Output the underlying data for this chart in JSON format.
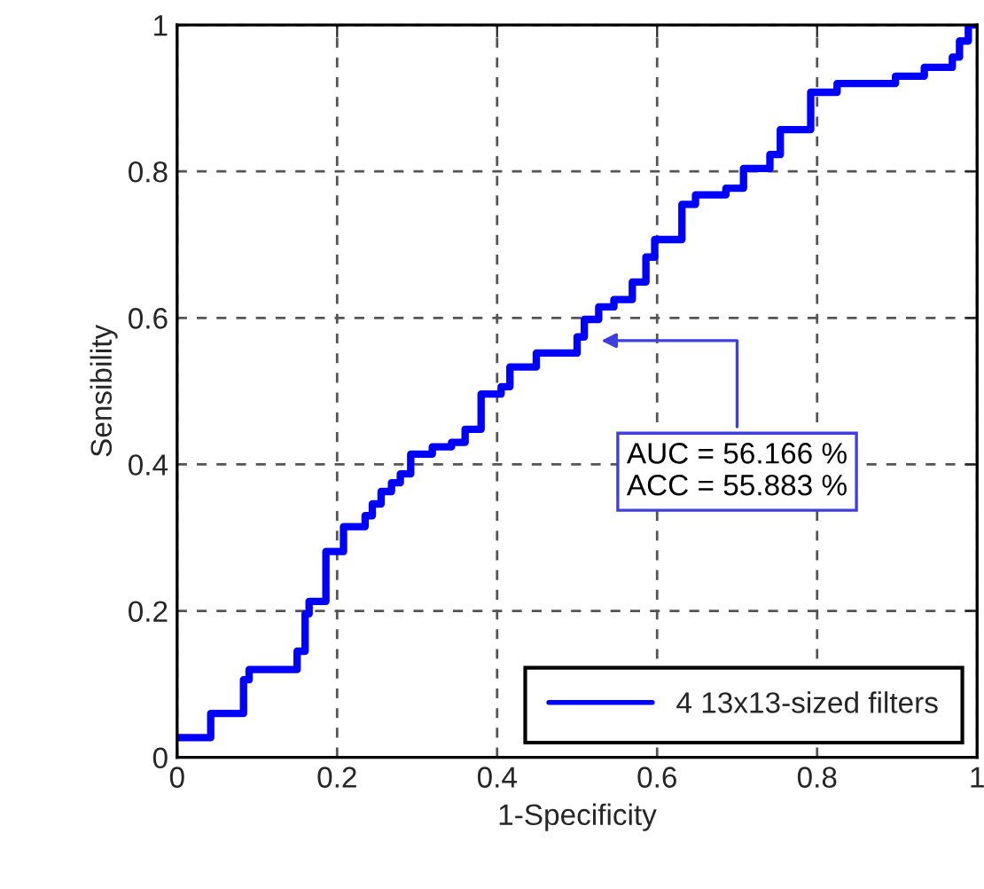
{
  "chart_data": {
    "type": "step",
    "xlabel": "1-Specificity",
    "ylabel": "Sensibility",
    "series": [
      {
        "name": "4 13x13-sized filters",
        "color": "#0000ff",
        "x": [
          0,
          0.042,
          0.083,
          0.09,
          0.15,
          0.16,
          0.165,
          0.186,
          0.208,
          0.235,
          0.244,
          0.255,
          0.268,
          0.279,
          0.292,
          0.319,
          0.343,
          0.36,
          0.38,
          0.405,
          0.416,
          0.449,
          0.5,
          0.509,
          0.527,
          0.546,
          0.569,
          0.586,
          0.597,
          0.631,
          0.648,
          0.686,
          0.708,
          0.741,
          0.754,
          0.792,
          0.825,
          0.898,
          0.934,
          0.969,
          0.978,
          0.989,
          1
        ],
        "values": [
          0.027,
          0.06,
          0.106,
          0.12,
          0.145,
          0.196,
          0.213,
          0.281,
          0.315,
          0.33,
          0.346,
          0.363,
          0.375,
          0.387,
          0.414,
          0.424,
          0.43,
          0.448,
          0.496,
          0.506,
          0.533,
          0.552,
          0.574,
          0.598,
          0.615,
          0.625,
          0.649,
          0.683,
          0.707,
          0.755,
          0.768,
          0.777,
          0.804,
          0.823,
          0.857,
          0.908,
          0.92,
          0.93,
          0.942,
          0.956,
          0.978,
          1,
          1
        ]
      }
    ],
    "xlim": [
      0,
      1
    ],
    "ylim": [
      0,
      1
    ],
    "xticks": [
      0,
      0.2,
      0.4,
      0.6,
      0.8,
      1
    ],
    "yticks": [
      0,
      0.2,
      0.4,
      0.6,
      0.8,
      1
    ],
    "grid": true,
    "legend": "bottom right",
    "line_style": "solid",
    "annotations": [
      {
        "text": "AUC = 56.166 %\nACC = 55.883 %",
        "x": 0.524,
        "y": 0.569
      }
    ]
  }
}
